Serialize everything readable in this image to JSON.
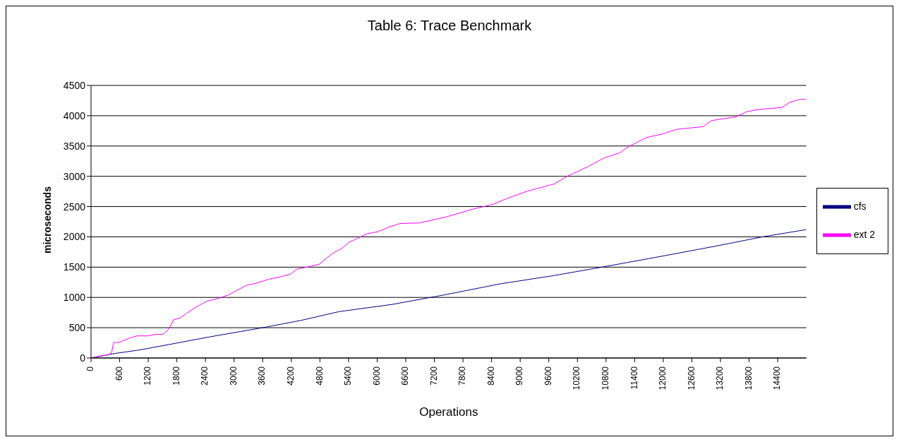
{
  "chart_data": {
    "type": "line",
    "title": "Table 6: Trace Benchmark",
    "xlabel": "Operations",
    "ylabel": "microseconds",
    "xlim": [
      0,
      15000
    ],
    "xticks": [
      0,
      600,
      1200,
      1800,
      2400,
      3000,
      3600,
      4200,
      4800,
      5400,
      6000,
      6600,
      7200,
      7800,
      8400,
      9000,
      9600,
      10200,
      10800,
      11400,
      12000,
      12600,
      13200,
      13800,
      14400
    ],
    "ylim": [
      0,
      4500
    ],
    "yticks": [
      0,
      500,
      1000,
      1500,
      2000,
      2500,
      3000,
      3500,
      4000,
      4500
    ],
    "grid": "y",
    "legend": "right",
    "marker": "none",
    "line_style": "solid",
    "series": [
      {
        "name": "cfs",
        "color": "#000080",
        "x": [
          0,
          505,
          1000,
          1620,
          2500,
          3670,
          4400,
          5200,
          6320,
          7400,
          8590,
          9700,
          10750,
          11900,
          13120,
          14080,
          15000
        ],
        "values": [
          0,
          75,
          130,
          220,
          350,
          510,
          620,
          765,
          885,
          1040,
          1225,
          1360,
          1505,
          1670,
          1850,
          2000,
          2120
        ]
      },
      {
        "name": "ext 2",
        "color": "#ff00ff",
        "x": [
          0,
          200,
          350,
          430,
          475,
          580,
          810,
          965,
          1195,
          1350,
          1500,
          1610,
          1670,
          1730,
          1880,
          2005,
          2190,
          2420,
          2650,
          2880,
          3030,
          3260,
          3490,
          3720,
          3950,
          4180,
          4330,
          4560,
          4790,
          4940,
          5100,
          5250,
          5400,
          5555,
          5785,
          6015,
          6245,
          6475,
          6890,
          7450,
          8020,
          8420,
          8710,
          9150,
          9720,
          10010,
          10410,
          10750,
          11080,
          11250,
          11650,
          11990,
          12280,
          12840,
          13010,
          13520,
          13740,
          13970,
          14480,
          14680,
          14880,
          15000
        ],
        "values": [
          0,
          35,
          50,
          85,
          255,
          255,
          330,
          365,
          365,
          390,
          390,
          460,
          535,
          630,
          665,
          740,
          835,
          935,
          980,
          1040,
          1105,
          1200,
          1240,
          1300,
          1335,
          1385,
          1470,
          1505,
          1550,
          1650,
          1745,
          1805,
          1905,
          1965,
          2050,
          2085,
          2160,
          2220,
          2230,
          2330,
          2460,
          2535,
          2630,
          2755,
          2875,
          3010,
          3155,
          3300,
          3385,
          3480,
          3640,
          3700,
          3775,
          3820,
          3920,
          3980,
          4065,
          4100,
          4135,
          4230,
          4270,
          4270
        ]
      }
    ]
  }
}
